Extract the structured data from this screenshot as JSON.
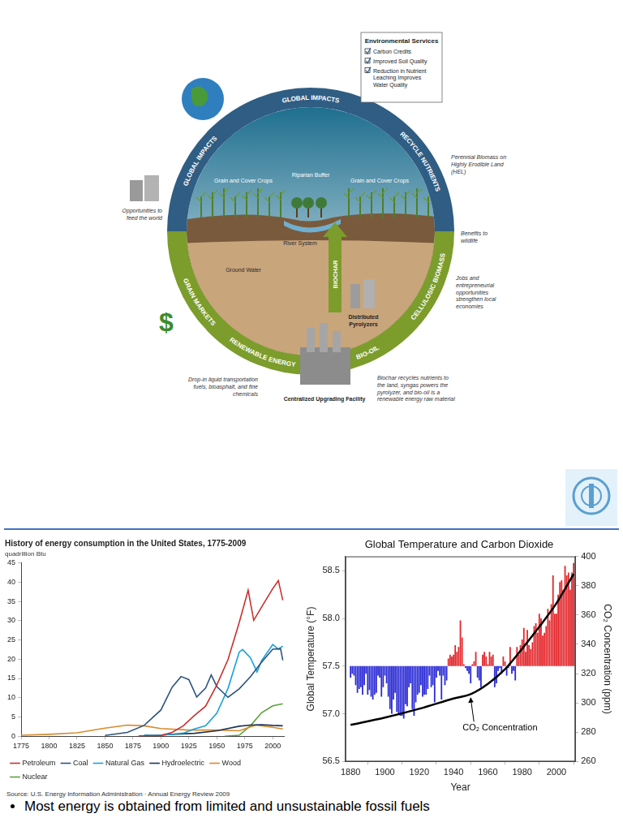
{
  "diagram": {
    "cycle_upper": [
      "GLOBAL IMPACTS",
      "GLOBAL IMPACTS",
      "RECYCLE NUTRIENTS"
    ],
    "cycle_lower": [
      "GRAIN MARKETS",
      "RENEWABLE ENERGY",
      "BIO-OIL",
      "CELLULOSIC BIOMASS"
    ],
    "inner_arrow": "BIOCHAR",
    "environmental_services": {
      "title": "Environmental Services",
      "items": [
        "Carbon Credits",
        "Improved Soil Quality",
        "Reduction in Nutrient Leaching Improves Water Quality"
      ]
    },
    "labels": {
      "crops_left": "Grain and Cover Crops",
      "crops_right": "Grain and Cover Crops",
      "riparian": "Riparian Buffer",
      "river": "River System",
      "ground_water": "Ground Water",
      "perennial": "Perennial Biomass on Highly Erodible Land (HEL)",
      "wildlife": "Benefits to wildlife",
      "feed": "Opportunities to feed the world",
      "jobs": "Jobs and entrepreneurial opportunities strengthen local economies",
      "pyrolyzers": "Distributed Pyrolyzers",
      "biochar_note": "Biochar recycles nutrients to the land, syngas powers the pyrolyzer, and bio-oil is a renewable energy raw material",
      "fuels": "Drop-in liquid transportation fuels, bioasphalt, and fine chemicals",
      "facility": "Centralized Upgrading Facility",
      "dollar": "$"
    }
  },
  "bullets": [
    "Most energy is obtained from limited and unsustainable fossil fuels"
  ],
  "chart_data": [
    {
      "type": "line",
      "title": "History of energy consumption in the United States, 1775-2009",
      "subtitle": "quadrillion Btu",
      "source": "Source: U.S. Energy Information Administration · Annual Energy Review 2009",
      "xlim": [
        1775,
        2010
      ],
      "xticks": [
        1775,
        1800,
        1825,
        1850,
        1875,
        1900,
        1925,
        1950,
        1975,
        2000
      ],
      "ylim": [
        0,
        45
      ],
      "yticks": [
        0,
        5,
        10,
        15,
        20,
        25,
        30,
        35,
        40,
        45
      ],
      "grid": false,
      "legend": "bottom",
      "series": [
        {
          "name": "Petroleum",
          "color": "#c8312f",
          "x": [
            1880,
            1900,
            1910,
            1920,
            1930,
            1940,
            1950,
            1960,
            1970,
            1978,
            1983,
            1990,
            2000,
            2005,
            2009
          ],
          "values": [
            0.1,
            0.2,
            1.0,
            2.7,
            5.4,
            7.8,
            13.3,
            19.9,
            29.5,
            37.9,
            30.1,
            33.5,
            38.3,
            40.4,
            35.3
          ]
        },
        {
          "name": "Coal",
          "color": "#2d5480",
          "x": [
            1850,
            1870,
            1885,
            1900,
            1910,
            1918,
            1925,
            1932,
            1940,
            1945,
            1950,
            1960,
            1970,
            1980,
            1990,
            2000,
            2007,
            2009
          ],
          "values": [
            0.2,
            1.0,
            2.8,
            6.8,
            12.7,
            15.5,
            14.7,
            10.2,
            12.5,
            15.9,
            12.9,
            10.1,
            12.3,
            15.4,
            19.2,
            22.6,
            22.7,
            19.7
          ]
        },
        {
          "name": "Natural Gas",
          "color": "#1ba1d8",
          "x": [
            1885,
            1900,
            1910,
            1920,
            1930,
            1940,
            1950,
            1960,
            1970,
            1973,
            1980,
            1986,
            1990,
            2000,
            2005,
            2009
          ],
          "values": [
            0.3,
            0.25,
            0.5,
            0.8,
            1.9,
            2.7,
            6.0,
            12.4,
            21.8,
            22.5,
            20.4,
            16.7,
            19.6,
            23.8,
            22.6,
            23.4
          ]
        },
        {
          "name": "Hydroelectric",
          "color": "#1c3557",
          "x": [
            1890,
            1910,
            1930,
            1950,
            1970,
            1980,
            1990,
            2000,
            2009
          ],
          "values": [
            0.02,
            0.5,
            0.75,
            1.4,
            2.6,
            2.9,
            3.0,
            2.8,
            2.7
          ]
        },
        {
          "name": "Wood",
          "color": "#d98a2b",
          "x": [
            1775,
            1800,
            1825,
            1850,
            1870,
            1885,
            1900,
            1925,
            1950,
            1970,
            1985,
            2000,
            2009
          ],
          "values": [
            0.25,
            0.5,
            0.9,
            2.1,
            2.9,
            2.7,
            2.0,
            1.6,
            1.6,
            1.4,
            2.9,
            2.3,
            1.9
          ]
        },
        {
          "name": "Nuclear",
          "color": "#5aa03c",
          "x": [
            1957,
            1970,
            1980,
            1990,
            2000,
            2009
          ],
          "values": [
            0,
            0.24,
            2.7,
            6.1,
            7.9,
            8.4
          ]
        }
      ]
    },
    {
      "type": "bar",
      "title": "Global Temperature and Carbon Dioxide",
      "x_label": "Year",
      "y_label": "Global Temperature (°F)",
      "y2_label": "CO₂ Concentration (ppm)",
      "xlim": [
        1877,
        2011
      ],
      "xticks": [
        1880,
        1900,
        1920,
        1940,
        1960,
        1980,
        2000
      ],
      "ylim": [
        56.5,
        58.65
      ],
      "yticks": [
        56.5,
        {
          "value": 57,
          "label": "57.0"
        },
        57.5,
        {
          "value": 58,
          "label": "58.0"
        },
        58.5
      ],
      "y2lim": [
        260,
        400
      ],
      "y2ticks": [
        260,
        280,
        300,
        320,
        340,
        360,
        380,
        400
      ],
      "grid": false,
      "baseline": 57.5,
      "series": [
        {
          "type": "bar",
          "x": [
            1880,
            1881,
            1882,
            1883,
            1884,
            1885,
            1886,
            1887,
            1888,
            1889,
            1890,
            1891,
            1892,
            1893,
            1894,
            1895,
            1896,
            1897,
            1898,
            1899,
            1900,
            1901,
            1902,
            1903,
            1904,
            1905,
            1906,
            1907,
            1908,
            1909,
            1910,
            1911,
            1912,
            1913,
            1914,
            1915,
            1916,
            1917,
            1918,
            1919,
            1920,
            1921,
            1922,
            1923,
            1924,
            1925,
            1926,
            1927,
            1928,
            1929,
            1930,
            1931,
            1932,
            1933,
            1934,
            1935,
            1936,
            1937,
            1938,
            1939,
            1940,
            1941,
            1942,
            1943,
            1944,
            1945,
            1946,
            1947,
            1948,
            1949,
            1950,
            1951,
            1952,
            1953,
            1954,
            1955,
            1956,
            1957,
            1958,
            1959,
            1960,
            1961,
            1962,
            1963,
            1964,
            1965,
            1966,
            1967,
            1968,
            1969,
            1970,
            1971,
            1972,
            1973,
            1974,
            1975,
            1976,
            1977,
            1978,
            1979,
            1980,
            1981,
            1982,
            1983,
            1984,
            1985,
            1986,
            1987,
            1988,
            1989,
            1990,
            1991,
            1992,
            1993,
            1994,
            1995,
            1996,
            1997,
            1998,
            1999,
            2000,
            2001,
            2002,
            2003,
            2004,
            2005,
            2006,
            2007,
            2008,
            2009,
            2010
          ],
          "values": [
            57.38,
            57.42,
            57.4,
            57.3,
            57.22,
            57.26,
            57.28,
            57.2,
            57.3,
            57.42,
            57.2,
            57.25,
            57.18,
            57.15,
            57.2,
            57.22,
            57.4,
            57.38,
            57.18,
            57.28,
            57.4,
            57.32,
            57.18,
            57.05,
            57.0,
            57.15,
            57.22,
            57.02,
            57.0,
            56.98,
            56.98,
            56.95,
            57.1,
            57.08,
            57.28,
            57.32,
            57.05,
            56.98,
            57.12,
            57.2,
            57.22,
            57.3,
            57.18,
            57.2,
            57.2,
            57.26,
            57.4,
            57.28,
            57.3,
            57.12,
            57.38,
            57.45,
            57.4,
            57.15,
            57.4,
            57.3,
            57.35,
            57.58,
            57.62,
            57.6,
            57.62,
            57.72,
            57.65,
            57.7,
            57.98,
            57.8,
            57.52,
            57.48,
            57.45,
            57.42,
            57.32,
            57.52,
            57.55,
            57.65,
            57.38,
            57.35,
            57.28,
            57.62,
            57.65,
            57.6,
            57.52,
            57.65,
            57.6,
            57.62,
            57.28,
            57.32,
            57.45,
            57.48,
            57.42,
            57.6,
            57.55,
            57.4,
            57.48,
            57.7,
            57.42,
            57.45,
            57.35,
            57.7,
            57.62,
            57.72,
            57.78,
            57.9,
            57.65,
            57.88,
            57.72,
            57.68,
            57.75,
            57.92,
            57.95,
            57.85,
            58.05,
            58.0,
            57.82,
            57.85,
            57.92,
            58.1,
            57.98,
            58.15,
            58.45,
            58.05,
            58.05,
            58.25,
            58.38,
            58.4,
            58.3,
            58.55,
            58.45,
            58.48,
            58.3,
            58.48,
            58.58
          ],
          "colors": [
            "#2b2bd6",
            "#2b2bd6",
            "#2b2bd6",
            "#2b2bd6",
            "#2b2bd6",
            "#2b2bd6",
            "#2b2bd6",
            "#2b2bd6",
            "#2b2bd6",
            "#2b2bd6",
            "#2b2bd6",
            "#2b2bd6",
            "#2b2bd6",
            "#2b2bd6",
            "#2b2bd6",
            "#2b2bd6",
            "#2b2bd6",
            "#2b2bd6",
            "#2b2bd6",
            "#2b2bd6",
            "#2b2bd6",
            "#2b2bd6",
            "#2b2bd6",
            "#2b2bd6",
            "#2b2bd6",
            "#2b2bd6",
            "#2b2bd6",
            "#2b2bd6",
            "#2b2bd6",
            "#2b2bd6",
            "#2b2bd6",
            "#2b2bd6",
            "#2b2bd6",
            "#2b2bd6",
            "#2b2bd6",
            "#2b2bd6",
            "#2b2bd6",
            "#2b2bd6",
            "#2b2bd6",
            "#2b2bd6",
            "#2b2bd6",
            "#2b2bd6",
            "#2b2bd6",
            "#2b2bd6",
            "#2b2bd6",
            "#2b2bd6",
            "#2b2bd6",
            "#2b2bd6",
            "#2b2bd6",
            "#2b2bd6",
            "#2b2bd6",
            "#2b2bd6",
            "#2b2bd6",
            "#2b2bd6",
            "#2b2bd6",
            "#2b2bd6",
            "#2b2bd6",
            "#e3262b",
            "#e3262b",
            "#e3262b",
            "#e3262b",
            "#e3262b",
            "#e3262b",
            "#e3262b",
            "#e3262b",
            "#e3262b",
            "#e3262b",
            "#2b2bd6",
            "#2b2bd6",
            "#2b2bd6",
            "#2b2bd6",
            "#e3262b",
            "#e3262b",
            "#e3262b",
            "#2b2bd6",
            "#2b2bd6",
            "#2b2bd6",
            "#e3262b",
            "#e3262b",
            "#e3262b",
            "#e3262b",
            "#e3262b",
            "#e3262b",
            "#e3262b",
            "#2b2bd6",
            "#2b2bd6",
            "#2b2bd6",
            "#2b2bd6",
            "#2b2bd6",
            "#e3262b",
            "#e3262b",
            "#2b2bd6",
            "#2b2bd6",
            "#e3262b",
            "#2b2bd6",
            "#2b2bd6",
            "#2b2bd6",
            "#e3262b",
            "#e3262b",
            "#e3262b",
            "#e3262b",
            "#e3262b",
            "#e3262b",
            "#e3262b",
            "#e3262b",
            "#e3262b",
            "#e3262b",
            "#e3262b",
            "#e3262b",
            "#e3262b",
            "#e3262b",
            "#e3262b",
            "#e3262b",
            "#e3262b",
            "#e3262b",
            "#e3262b",
            "#e3262b",
            "#e3262b",
            "#e3262b",
            "#e3262b",
            "#e3262b",
            "#e3262b",
            "#e3262b",
            "#e3262b",
            "#e3262b",
            "#e3262b",
            "#e3262b",
            "#e3262b",
            "#e3262b",
            "#e3262b",
            "#e3262b"
          ]
        },
        {
          "type": "line",
          "axis": "y2",
          "color": "#000000",
          "x": [
            1880,
            1900,
            1920,
            1940,
            1950,
            1960,
            1970,
            1980,
            1990,
            2000,
            2010
          ],
          "values": [
            285,
            290,
            296,
            303,
            306,
            313,
            323,
            337,
            352,
            368,
            388
          ]
        }
      ],
      "annotations": [
        {
          "text": "CO₂ Concentration",
          "x": 1950,
          "y": 306
        }
      ]
    }
  ]
}
